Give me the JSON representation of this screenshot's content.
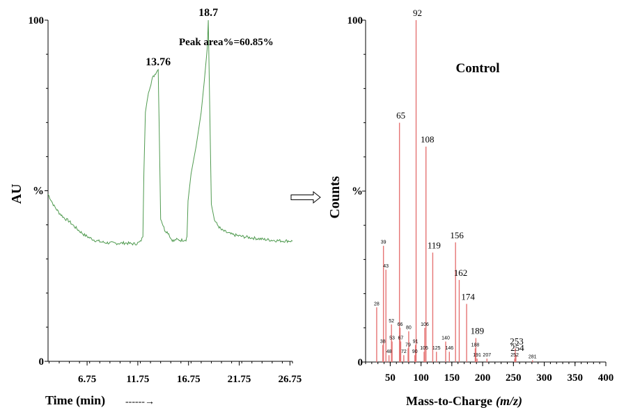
{
  "colors": {
    "chromatogram": "#4f9a4f",
    "spectrum": "#e57373",
    "axis": "#000000"
  },
  "chart_data": [
    {
      "type": "line",
      "xlabel": "Time (min)",
      "xlabel_arrow": "------→",
      "ylabel": "AU",
      "xlim": [
        2.9,
        27
      ],
      "ylim": [
        0,
        100
      ],
      "x_ticks": [
        "6.75",
        "11.75",
        "16.75",
        "21.75",
        "26.75"
      ],
      "x_tick_values": [
        6.75,
        11.75,
        16.75,
        21.75,
        26.75
      ],
      "y_tick_labels": [
        "100",
        "%",
        "0"
      ],
      "y_tick_values": [
        100,
        50,
        0
      ],
      "peaks": [
        {
          "label": "13.76",
          "x": 13.76,
          "y": 85.5
        },
        {
          "label": "18.7",
          "x": 18.7,
          "y": 100
        }
      ],
      "annotation": "Peak area%=60.85%",
      "x": [
        2.9,
        3.5,
        4.0,
        4.5,
        5.0,
        5.5,
        6.0,
        6.5,
        7.0,
        7.5,
        8.0,
        8.5,
        9.0,
        9.5,
        10.0,
        10.5,
        11.0,
        11.5,
        12.0,
        12.25,
        12.35,
        12.5,
        12.8,
        13.2,
        13.5,
        13.76,
        13.85,
        14.0,
        14.4,
        14.8,
        15.0,
        15.3,
        15.5,
        16.0,
        16.5,
        16.6,
        16.7,
        17.0,
        17.5,
        18.0,
        18.3,
        18.6,
        18.7,
        18.85,
        19.0,
        19.3,
        19.6,
        20.0,
        20.5,
        21.0,
        22.0,
        23.0,
        24.0,
        25.0,
        26.0,
        26.75,
        27.0
      ],
      "y": [
        49,
        45.5,
        43.5,
        42,
        41,
        39.5,
        38.2,
        37,
        36.2,
        35.5,
        35.1,
        34.8,
        34.7,
        34.6,
        34.6,
        34.7,
        34.5,
        34.4,
        35.0,
        36.5,
        55,
        73,
        79,
        83,
        84.5,
        85.5,
        70,
        42,
        38.5,
        37.5,
        36,
        35.2,
        35.7,
        35.5,
        35.7,
        36.5,
        47,
        55,
        63,
        73,
        82,
        92,
        100,
        73,
        46,
        41.5,
        40,
        38.5,
        37.8,
        37.2,
        36.6,
        36.2,
        35.8,
        35.5,
        35.3,
        35.3,
        35.2
      ]
    },
    {
      "type": "bar",
      "title": "Control",
      "xlabel": "Mass-to-Charge",
      "xlabel_unit": "(m/z)",
      "ylabel": "Counts",
      "xlim": [
        10,
        400
      ],
      "ylim": [
        0,
        100
      ],
      "x_ticks": [
        "50",
        "100",
        "150",
        "200",
        "250",
        "300",
        "350",
        "400"
      ],
      "x_tick_values": [
        50,
        100,
        150,
        200,
        250,
        300,
        350,
        400
      ],
      "y_tick_labels": [
        "100",
        "%",
        "0"
      ],
      "y_tick_values": [
        100,
        50,
        0
      ],
      "peaks": [
        {
          "mz": 28,
          "label": "28",
          "value": 16
        },
        {
          "mz": 38,
          "label": "38",
          "value": 5
        },
        {
          "mz": 39,
          "label": "39",
          "value": 34
        },
        {
          "mz": 43,
          "label": "43",
          "value": 27
        },
        {
          "mz": 48,
          "label": "48",
          "value": 2
        },
        {
          "mz": 52,
          "label": "52",
          "value": 11
        },
        {
          "mz": 53,
          "label": "53",
          "value": 6
        },
        {
          "mz": 65,
          "label": "65",
          "value": 70
        },
        {
          "mz": 66,
          "label": "66",
          "value": 10
        },
        {
          "mz": 67,
          "label": "67",
          "value": 6
        },
        {
          "mz": 72,
          "label": "72",
          "value": 2
        },
        {
          "mz": 79,
          "label": "79",
          "value": 4
        },
        {
          "mz": 80,
          "label": "80",
          "value": 9
        },
        {
          "mz": 90,
          "label": "90",
          "value": 2
        },
        {
          "mz": 91,
          "label": "91",
          "value": 5
        },
        {
          "mz": 92,
          "label": "92",
          "value": 100
        },
        {
          "mz": 105,
          "label": "105",
          "value": 3
        },
        {
          "mz": 106,
          "label": "106",
          "value": 10
        },
        {
          "mz": 108,
          "label": "108",
          "value": 63
        },
        {
          "mz": 119,
          "label": "119",
          "value": 32
        },
        {
          "mz": 125,
          "label": "125",
          "value": 3
        },
        {
          "mz": 140,
          "label": "140",
          "value": 6
        },
        {
          "mz": 146,
          "label": "146",
          "value": 3
        },
        {
          "mz": 156,
          "label": "156",
          "value": 35
        },
        {
          "mz": 162,
          "label": "162",
          "value": 24
        },
        {
          "mz": 174,
          "label": "174",
          "value": 17
        },
        {
          "mz": 188,
          "label": "188",
          "value": 4
        },
        {
          "mz": 189,
          "label": "189",
          "value": 7
        },
        {
          "mz": 191,
          "label": "191",
          "value": 1
        },
        {
          "mz": 207,
          "label": "207",
          "value": 1
        },
        {
          "mz": 252,
          "label": "252",
          "value": 1
        },
        {
          "mz": 253,
          "label": "253",
          "value": 4
        },
        {
          "mz": 254,
          "label": "254",
          "value": 2
        },
        {
          "mz": 281,
          "label": "281",
          "value": 0.5
        }
      ]
    }
  ]
}
